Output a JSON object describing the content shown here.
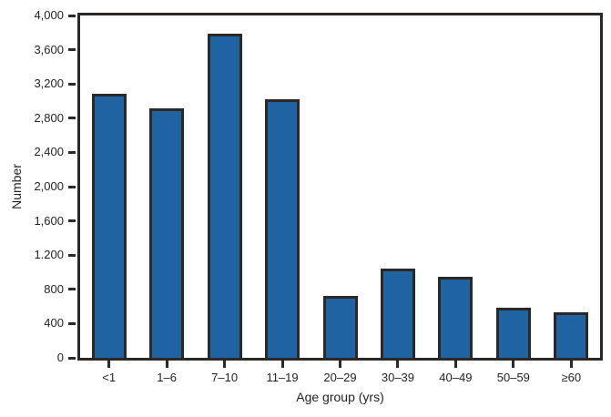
{
  "chart_data": {
    "type": "bar",
    "title": "",
    "xlabel": "Age group (yrs)",
    "ylabel": "Number",
    "categories": [
      "<1",
      "1–6",
      "7–10",
      "11–19",
      "20–29",
      "30–39",
      "40–49",
      "50–59",
      "≥60"
    ],
    "values": [
      3090,
      2910,
      3790,
      3020,
      720,
      1040,
      950,
      590,
      530
    ],
    "ylim": [
      0,
      4000
    ],
    "ytick_step": 400,
    "ytick_labels_bottom_to_top": [
      "0",
      "400",
      "800",
      "1.200",
      "1,600",
      "2,000",
      "2,400",
      "2,800",
      "3,200",
      "3,600",
      "4,000"
    ],
    "grid": false,
    "legend": null,
    "colors": {
      "bar_fill": "#1f63a3",
      "bar_outline": "#2b2826",
      "axis": "#2b2826",
      "text": "#231f20",
      "background": "#ffffff"
    }
  }
}
